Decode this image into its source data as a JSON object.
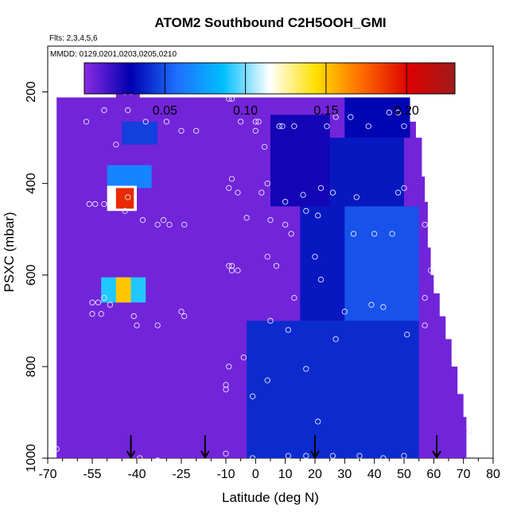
{
  "chart_data": {
    "type": "heatmap",
    "title": "ATOM2 Southbound C2H5OOH_GMI",
    "subtitle_flights": "Flts: 2,3,4,5,6",
    "subtitle_dates": "MMDD: 0129,0201,0203,0205,0210",
    "xlabel": "Latitude (deg N)",
    "ylabel": "PSXC (mbar)",
    "xlim": [
      -70,
      80
    ],
    "ylim": [
      1000,
      100
    ],
    "x_ticks": [
      -70,
      -55,
      -40,
      -25,
      -10,
      0,
      10,
      20,
      30,
      40,
      50,
      60,
      70,
      80
    ],
    "x_tick_labels": [
      "-70",
      "-55",
      "-40",
      "-25",
      "-10",
      "0",
      "10",
      "20",
      "30",
      "40",
      "50",
      "60",
      "70",
      "80"
    ],
    "y_ticks": [
      200,
      400,
      600,
      800,
      1000
    ],
    "y_tick_labels": [
      "200",
      "400",
      "600",
      "800",
      "1000"
    ],
    "colorbar": {
      "range": [
        0,
        0.23
      ],
      "ticks": [
        0.05,
        0.1,
        0.15,
        0.2
      ],
      "tick_labels": [
        "0.05",
        "0.10",
        "0.15",
        "0.20"
      ],
      "colors": [
        "#8a2be2",
        "#0000b0",
        "#1f6fff",
        "#00bfff",
        "#ffffff",
        "#ffe000",
        "#ff6a00",
        "#dd0000",
        "#a01c1c"
      ]
    },
    "background_value": 0.005,
    "coverage_top_mbar_by_lat": [
      [
        -58,
        212
      ],
      [
        -47,
        212
      ],
      [
        -47,
        195
      ],
      [
        -39,
        195
      ],
      [
        -39,
        212
      ],
      [
        52,
        212
      ],
      [
        52,
        265
      ],
      [
        54,
        265
      ],
      [
        54,
        300
      ],
      [
        56,
        300
      ],
      [
        56,
        385
      ],
      [
        57,
        385
      ],
      [
        57,
        440
      ],
      [
        58,
        440
      ],
      [
        58,
        540
      ],
      [
        59,
        540
      ],
      [
        59,
        600
      ],
      [
        60,
        600
      ],
      [
        60,
        640
      ],
      [
        62,
        640
      ],
      [
        62,
        690
      ],
      [
        64,
        690
      ],
      [
        64,
        740
      ],
      [
        66,
        740
      ],
      [
        66,
        800
      ],
      [
        68,
        800
      ],
      [
        68,
        860
      ],
      [
        70,
        860
      ],
      [
        70,
        910
      ],
      [
        71,
        910
      ],
      [
        71,
        980
      ]
    ],
    "south_edge_lat": -67,
    "regions": [
      {
        "lat": [
          -3,
          55
        ],
        "p": [
          700,
          1000
        ],
        "value": 0.04
      },
      {
        "lat": [
          15,
          50
        ],
        "p": [
          300,
          700
        ],
        "value": 0.035
      },
      {
        "lat": [
          30,
          55
        ],
        "p": [
          450,
          700
        ],
        "value": 0.05
      },
      {
        "lat": [
          5,
          25
        ],
        "p": [
          250,
          450
        ],
        "value": 0.025
      },
      {
        "lat": [
          30,
          52
        ],
        "p": [
          210,
          300
        ],
        "value": 0.03
      },
      {
        "lat": [
          -50,
          -35
        ],
        "p": [
          360,
          410
        ],
        "value": 0.065
      },
      {
        "lat": [
          -45,
          -33
        ],
        "p": [
          265,
          315
        ],
        "value": 0.045
      },
      {
        "lat": [
          -50,
          -40
        ],
        "p": [
          405,
          460
        ],
        "value": 0.115
      },
      {
        "lat": [
          -47,
          -41
        ],
        "p": [
          410,
          455
        ],
        "value": 0.19
      },
      {
        "lat": [
          -52,
          -37
        ],
        "p": [
          605,
          660
        ],
        "value": 0.09
      },
      {
        "lat": [
          -47,
          -42
        ],
        "p": [
          605,
          660
        ],
        "value": 0.15
      }
    ],
    "samples": [
      {
        "lat": -50,
        "p": 200
      },
      {
        "lat": -44,
        "p": 200
      },
      {
        "lat": -42,
        "p": 200
      },
      {
        "lat": -43,
        "p": 240
      },
      {
        "lat": -51,
        "p": 240
      },
      {
        "lat": -57,
        "p": 265
      },
      {
        "lat": -37,
        "p": 265
      },
      {
        "lat": -30,
        "p": 265
      },
      {
        "lat": -25,
        "p": 285
      },
      {
        "lat": -20,
        "p": 285
      },
      {
        "lat": -9,
        "p": 215
      },
      {
        "lat": -8,
        "p": 215
      },
      {
        "lat": -5,
        "p": 265
      },
      {
        "lat": 0,
        "p": 265
      },
      {
        "lat": 1,
        "p": 265
      },
      {
        "lat": 0,
        "p": 285
      },
      {
        "lat": 3,
        "p": 320
      },
      {
        "lat": 8,
        "p": 275
      },
      {
        "lat": 9,
        "p": 275
      },
      {
        "lat": 13,
        "p": 275
      },
      {
        "lat": 24,
        "p": 275
      },
      {
        "lat": 27,
        "p": 255
      },
      {
        "lat": 32,
        "p": 255
      },
      {
        "lat": 38,
        "p": 275
      },
      {
        "lat": 45,
        "p": 245
      },
      {
        "lat": 48,
        "p": 245
      },
      {
        "lat": 50,
        "p": 275
      },
      {
        "lat": -47,
        "p": 315
      },
      {
        "lat": -8,
        "p": 390
      },
      {
        "lat": -9,
        "p": 410
      },
      {
        "lat": -6,
        "p": 420
      },
      {
        "lat": 2,
        "p": 420
      },
      {
        "lat": 4,
        "p": 400
      },
      {
        "lat": 10,
        "p": 440
      },
      {
        "lat": 16,
        "p": 425
      },
      {
        "lat": 22,
        "p": 410
      },
      {
        "lat": 26,
        "p": 420
      },
      {
        "lat": 34,
        "p": 430
      },
      {
        "lat": 48,
        "p": 420
      },
      {
        "lat": 50,
        "p": 410
      },
      {
        "lat": -43,
        "p": 430
      },
      {
        "lat": -44,
        "p": 460
      },
      {
        "lat": -56,
        "p": 445
      },
      {
        "lat": -54,
        "p": 445
      },
      {
        "lat": -51,
        "p": 445
      },
      {
        "lat": -38,
        "p": 480
      },
      {
        "lat": -33,
        "p": 490
      },
      {
        "lat": -31,
        "p": 480
      },
      {
        "lat": -29,
        "p": 490
      },
      {
        "lat": -24,
        "p": 490
      },
      {
        "lat": -3,
        "p": 475
      },
      {
        "lat": 5,
        "p": 480
      },
      {
        "lat": 10,
        "p": 490
      },
      {
        "lat": 12,
        "p": 510
      },
      {
        "lat": 17,
        "p": 460
      },
      {
        "lat": 21,
        "p": 470
      },
      {
        "lat": 33,
        "p": 510
      },
      {
        "lat": 40,
        "p": 510
      },
      {
        "lat": 46,
        "p": 510
      },
      {
        "lat": 57,
        "p": 490
      },
      {
        "lat": 4,
        "p": 560
      },
      {
        "lat": -9,
        "p": 580
      },
      {
        "lat": -8,
        "p": 580
      },
      {
        "lat": -8,
        "p": 590
      },
      {
        "lat": -6,
        "p": 590
      },
      {
        "lat": 7,
        "p": 580
      },
      {
        "lat": 20,
        "p": 560
      },
      {
        "lat": 22,
        "p": 610
      },
      {
        "lat": 59,
        "p": 590
      },
      {
        "lat": -55,
        "p": 660
      },
      {
        "lat": -53,
        "p": 660
      },
      {
        "lat": -51,
        "p": 650
      },
      {
        "lat": -55,
        "p": 685
      },
      {
        "lat": -52,
        "p": 685
      },
      {
        "lat": -49,
        "p": 665
      },
      {
        "lat": -41,
        "p": 690
      },
      {
        "lat": -40,
        "p": 710
      },
      {
        "lat": -33,
        "p": 710
      },
      {
        "lat": -25,
        "p": 680
      },
      {
        "lat": -24,
        "p": 690
      },
      {
        "lat": 5,
        "p": 700
      },
      {
        "lat": 13,
        "p": 650
      },
      {
        "lat": 30,
        "p": 680
      },
      {
        "lat": 39,
        "p": 665
      },
      {
        "lat": 43,
        "p": 670
      },
      {
        "lat": 57,
        "p": 650
      },
      {
        "lat": 11,
        "p": 720
      },
      {
        "lat": 27,
        "p": 740
      },
      {
        "lat": 51,
        "p": 730
      },
      {
        "lat": 57,
        "p": 710
      },
      {
        "lat": -9,
        "p": 800
      },
      {
        "lat": -4,
        "p": 780
      },
      {
        "lat": 4,
        "p": 830
      },
      {
        "lat": 17,
        "p": 805
      },
      {
        "lat": -10,
        "p": 840
      },
      {
        "lat": -10,
        "p": 850
      },
      {
        "lat": -1,
        "p": 865
      },
      {
        "lat": 21,
        "p": 920
      },
      {
        "lat": 72,
        "p": 940
      },
      {
        "lat": -67,
        "p": 980
      },
      {
        "lat": -39,
        "p": 1000
      },
      {
        "lat": -33,
        "p": 1005
      },
      {
        "lat": -10,
        "p": 990
      },
      {
        "lat": -1,
        "p": 1000
      },
      {
        "lat": 11,
        "p": 995
      },
      {
        "lat": 17,
        "p": 995
      },
      {
        "lat": 26,
        "p": 995
      },
      {
        "lat": 35,
        "p": 995
      },
      {
        "lat": 43,
        "p": 1000
      },
      {
        "lat": 50,
        "p": 995
      }
    ],
    "arrows_lat": [
      -42,
      -17,
      20,
      61
    ],
    "arrow_p": 950
  }
}
